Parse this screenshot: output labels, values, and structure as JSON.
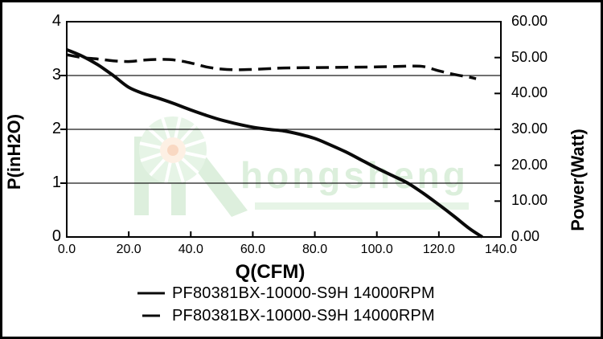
{
  "chart_data": {
    "type": "line",
    "title": "",
    "x_axis": {
      "label": "Q(CFM)",
      "min": 0,
      "max": 140,
      "tick_values": [
        0,
        20,
        40,
        60,
        80,
        100,
        120,
        140
      ],
      "tick_labels": [
        "0.0",
        "20.0",
        "40.0",
        "60.0",
        "80.0",
        "100.0",
        "120.0",
        "140.0"
      ],
      "axis_tick_values": [
        20,
        40,
        60,
        80,
        100,
        120
      ]
    },
    "y_axis_left": {
      "label": "P(inH2O)",
      "min": 0,
      "max": 4,
      "tick_values": [
        0,
        1,
        2,
        3,
        4
      ],
      "tick_labels": [
        "0",
        "1",
        "2",
        "3",
        "4"
      ],
      "gridline_values": [
        1,
        2,
        3
      ],
      "axis_tick_values": [
        1,
        2,
        3
      ]
    },
    "y_axis_right": {
      "label": "Power(Watt)",
      "min": 0,
      "max": 60,
      "tick_values": [
        0,
        10,
        20,
        30,
        40,
        50,
        60
      ],
      "tick_labels": [
        "0.00",
        "10.00",
        "20.00",
        "30.00",
        "40.00",
        "50.00",
        "60.00"
      ],
      "axis_tick_values": [
        10,
        20,
        30,
        40,
        50
      ]
    },
    "grid": "horizontal-only",
    "legend_position": "bottom",
    "series": [
      {
        "name": "static-pressure-curve",
        "label": "PF80381BX-10000-S9H 14000RPM",
        "line_style": "solid",
        "axis": "left",
        "points": [
          [
            0,
            3.48
          ],
          [
            5,
            3.36
          ],
          [
            10,
            3.2
          ],
          [
            15,
            3.0
          ],
          [
            20,
            2.78
          ],
          [
            25,
            2.66
          ],
          [
            30,
            2.57
          ],
          [
            35,
            2.47
          ],
          [
            40,
            2.36
          ],
          [
            45,
            2.26
          ],
          [
            50,
            2.17
          ],
          [
            55,
            2.1
          ],
          [
            60,
            2.04
          ],
          [
            65,
            2.0
          ],
          [
            70,
            1.97
          ],
          [
            75,
            1.91
          ],
          [
            80,
            1.83
          ],
          [
            85,
            1.71
          ],
          [
            90,
            1.58
          ],
          [
            95,
            1.43
          ],
          [
            100,
            1.28
          ],
          [
            105,
            1.14
          ],
          [
            110,
            1.0
          ],
          [
            115,
            0.81
          ],
          [
            120,
            0.6
          ],
          [
            125,
            0.38
          ],
          [
            130,
            0.15
          ],
          [
            134,
            0.0
          ]
        ]
      },
      {
        "name": "power-curve",
        "label": "PF80381BX-10000-S9H 14000RPM",
        "line_style": "dashed",
        "axis": "right",
        "points": [
          [
            0,
            50.8
          ],
          [
            5,
            50.0
          ],
          [
            10,
            49.6
          ],
          [
            15,
            49.1
          ],
          [
            20,
            48.9
          ],
          [
            25,
            49.3
          ],
          [
            30,
            49.5
          ],
          [
            35,
            49.3
          ],
          [
            40,
            48.5
          ],
          [
            45,
            47.4
          ],
          [
            50,
            46.8
          ],
          [
            55,
            46.6
          ],
          [
            60,
            46.7
          ],
          [
            65,
            46.9
          ],
          [
            70,
            47.1
          ],
          [
            80,
            47.2
          ],
          [
            90,
            47.3
          ],
          [
            100,
            47.4
          ],
          [
            110,
            47.6
          ],
          [
            115,
            47.5
          ],
          [
            120,
            46.3
          ],
          [
            125,
            45.3
          ],
          [
            130,
            44.5
          ],
          [
            132,
            44.1
          ]
        ]
      }
    ],
    "colors": {
      "line": "#0a0a0a",
      "grid": "#1a1a1a",
      "frame": "#000000"
    }
  },
  "watermark": {
    "text": "hongsheng",
    "text_color": "#dcefdc",
    "logo_green": "#e6f4e6",
    "logo_green_dark": "#ddefdd",
    "orange_outer": "#fdf0e4",
    "orange_inner": "#f9d8c2"
  },
  "frame": {
    "border_color": "#000000"
  }
}
